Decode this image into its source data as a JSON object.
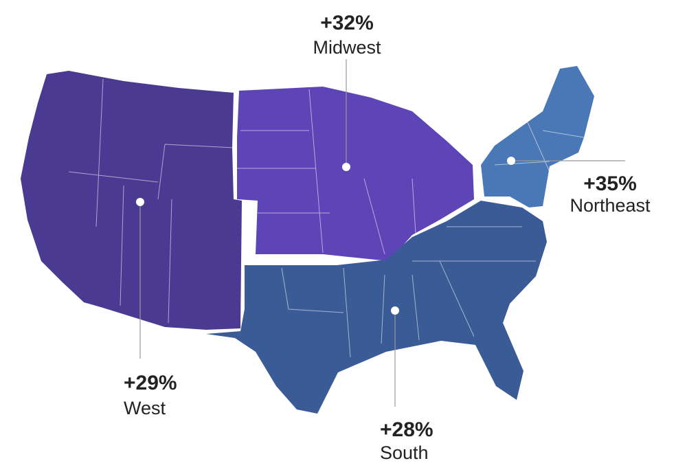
{
  "regions": [
    {
      "name": "West",
      "change": "+29%"
    },
    {
      "name": "Midwest",
      "change": "+32%"
    },
    {
      "name": "Northeast",
      "change": "+35%"
    },
    {
      "name": "South",
      "change": "+28%"
    }
  ]
}
